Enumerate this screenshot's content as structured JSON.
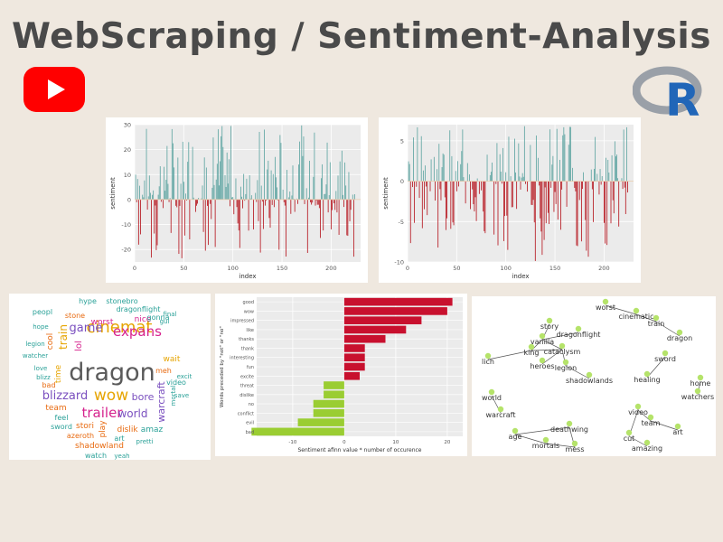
{
  "header": {
    "title": "WebScraping / Sentiment-Analysis",
    "left_logo_icon": "youtube-logo-icon",
    "right_logo_icon": "r-language-logo-icon",
    "right_logo_letter": "R"
  },
  "colors": {
    "positive": "#5ba3a0",
    "negative": "#b5121b",
    "bar_red": "#c8102e",
    "bar_green": "#9acd32",
    "panel_grid": "#ebebeb",
    "node": "#b5e36a"
  },
  "chart_data": [
    {
      "type": "bar",
      "name_hint": "sentiment-by-index-1",
      "xlabel": "index",
      "ylabel": "sentiment",
      "xlim": [
        0,
        230
      ],
      "ylim": [
        -25,
        30
      ],
      "x_ticks": [
        0,
        50,
        100,
        150,
        200
      ],
      "y_ticks": [
        -20,
        -10,
        0,
        10,
        20,
        30
      ],
      "grid": true,
      "seed": 7,
      "count": 224,
      "pos_max": 30,
      "neg_max": -24
    },
    {
      "type": "bar",
      "name_hint": "sentiment-by-index-2",
      "xlabel": "index",
      "ylabel": "sentiment",
      "xlim": [
        0,
        230
      ],
      "ylim": [
        -10,
        7
      ],
      "x_ticks": [
        0,
        50,
        100,
        150,
        200
      ],
      "y_ticks": [
        -10,
        -5,
        0,
        5
      ],
      "grid": true,
      "seed": 13,
      "count": 224,
      "pos_max": 7,
      "neg_max": -10
    },
    {
      "type": "bar",
      "orientation": "horizontal",
      "xlabel": "Sentiment afinn value * number of occurence",
      "ylabel": "Words preceded by \"not\" or \"no\"",
      "xlim": [
        -17,
        23
      ],
      "x_ticks": [
        -10,
        0,
        10,
        20
      ],
      "grid": true,
      "categories": [
        "good",
        "wow",
        "impressed",
        "like",
        "thanks",
        "thank",
        "interesting",
        "fun",
        "excite",
        "threat",
        "dislike",
        "no",
        "conflict",
        "evil",
        "bad"
      ],
      "values": [
        21,
        20,
        15,
        12,
        8,
        4,
        4,
        4,
        3,
        -4,
        -4,
        -6,
        -6,
        -9,
        -18
      ]
    },
    {
      "type": "wordcloud",
      "words": [
        {
          "text": "dragon",
          "color": "#5a5a5a"
        },
        {
          "text": "cinemat",
          "color": "#e6a400"
        },
        {
          "text": "wow",
          "color": "#e6a400"
        },
        {
          "text": "trailer",
          "color": "#d6228d"
        },
        {
          "text": "expans",
          "color": "#d6228d"
        },
        {
          "text": "blizzard",
          "color": "#7a4fbf"
        },
        {
          "text": "game",
          "color": "#7a4fbf"
        },
        {
          "text": "world",
          "color": "#7a4fbf"
        },
        {
          "text": "bore",
          "color": "#7a4fbf"
        },
        {
          "text": "warcraft",
          "color": "#7a4fbf"
        },
        {
          "text": "train",
          "color": "#e6a400"
        },
        {
          "text": "time",
          "color": "#e6a400"
        },
        {
          "text": "worst",
          "color": "#d6228d"
        },
        {
          "text": "nice",
          "color": "#d6228d"
        },
        {
          "text": "hype",
          "color": "#2aa198"
        },
        {
          "text": "stonebro",
          "color": "#2aa198"
        },
        {
          "text": "dragonflight",
          "color": "#2aa198"
        },
        {
          "text": "peopl",
          "color": "#2aa198"
        },
        {
          "text": "stone",
          "color": "#e86a10"
        },
        {
          "text": "gonna",
          "color": "#2aa198"
        },
        {
          "text": "hope",
          "color": "#2aa198"
        },
        {
          "text": "lol",
          "color": "#d6228d"
        },
        {
          "text": "final",
          "color": "#2aa198"
        },
        {
          "text": "gui",
          "color": "#2aa198"
        },
        {
          "text": "legion",
          "color": "#2aa198"
        },
        {
          "text": "cool",
          "color": "#e86a10"
        },
        {
          "text": "watcher",
          "color": "#2aa198"
        },
        {
          "text": "wait",
          "color": "#e6a400"
        },
        {
          "text": "meh",
          "color": "#e86a10"
        },
        {
          "text": "love",
          "color": "#2aa198"
        },
        {
          "text": "blizz",
          "color": "#2aa198"
        },
        {
          "text": "bad",
          "color": "#e86a10"
        },
        {
          "text": "excit",
          "color": "#2aa198"
        },
        {
          "text": "video",
          "color": "#2aa198"
        },
        {
          "text": "save",
          "color": "#2aa198"
        },
        {
          "text": "mortal",
          "color": "#2aa198"
        },
        {
          "text": "team",
          "color": "#e86a10"
        },
        {
          "text": "feel",
          "color": "#2aa198"
        },
        {
          "text": "sword",
          "color": "#2aa198"
        },
        {
          "text": "stori",
          "color": "#e86a10"
        },
        {
          "text": "play",
          "color": "#e86a10"
        },
        {
          "text": "dislik",
          "color": "#e86a10"
        },
        {
          "text": "amaz",
          "color": "#2aa198"
        },
        {
          "text": "azeroth",
          "color": "#e86a10"
        },
        {
          "text": "art",
          "color": "#2aa198"
        },
        {
          "text": "shadowland",
          "color": "#e86a10"
        },
        {
          "text": "pretti",
          "color": "#2aa198"
        },
        {
          "text": "watch",
          "color": "#2aa198"
        },
        {
          "text": "yeah",
          "color": "#2aa198"
        }
      ]
    },
    {
      "type": "network",
      "nodes": [
        "worst",
        "cinematic",
        "train",
        "dragon",
        "story",
        "dragonflight",
        "vanilla",
        "king",
        "cataclysm",
        "lich",
        "heroes",
        "legion",
        "sword",
        "shadowlands",
        "healing",
        "home",
        "watchers",
        "world",
        "warcraft",
        "deathwing",
        "age",
        "mortals",
        "mess",
        "video",
        "team",
        "art",
        "cut",
        "amazing"
      ],
      "edges": [
        [
          "worst",
          "cinematic"
        ],
        [
          "cinematic",
          "train"
        ],
        [
          "train",
          "dragon"
        ],
        [
          "story",
          "vanilla"
        ],
        [
          "dragonflight",
          "vanilla"
        ],
        [
          "vanilla",
          "cataclysm"
        ],
        [
          "king",
          "lich"
        ],
        [
          "king",
          "cataclysm"
        ],
        [
          "heroes",
          "cataclysm"
        ],
        [
          "legion",
          "cataclysm"
        ],
        [
          "legion",
          "shadowlands"
        ],
        [
          "vanilla",
          "king"
        ],
        [
          "sword",
          "healing"
        ],
        [
          "home",
          "watchers"
        ],
        [
          "world",
          "warcraft"
        ],
        [
          "deathwing",
          "age"
        ],
        [
          "age",
          "mortals"
        ],
        [
          "mortals",
          "mess"
        ],
        [
          "deathwing",
          "mess"
        ],
        [
          "video",
          "team"
        ],
        [
          "team",
          "art"
        ],
        [
          "video",
          "cut"
        ],
        [
          "cut",
          "amazing"
        ]
      ]
    }
  ]
}
